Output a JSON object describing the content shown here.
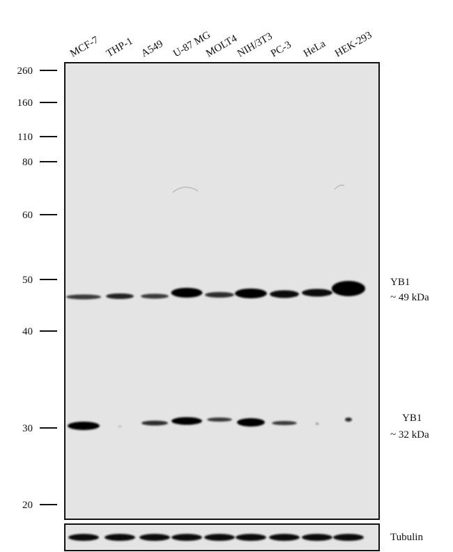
{
  "lanes": [
    "MCF-7",
    "THP-1",
    "A549",
    "U-87 MG",
    "MOLT4",
    "NIH/3T3",
    "PC-3",
    "HeLa",
    "HEK-293"
  ],
  "markers": [
    "260",
    "160",
    "110",
    "80",
    "60",
    "50",
    "40",
    "30",
    "20"
  ],
  "annotations": [
    {
      "label": "YB1",
      "size": "~ 49 kDa"
    },
    {
      "label": "YB1",
      "size": "~ 32 kDa"
    }
  ],
  "loading_control": "Tubulin"
}
